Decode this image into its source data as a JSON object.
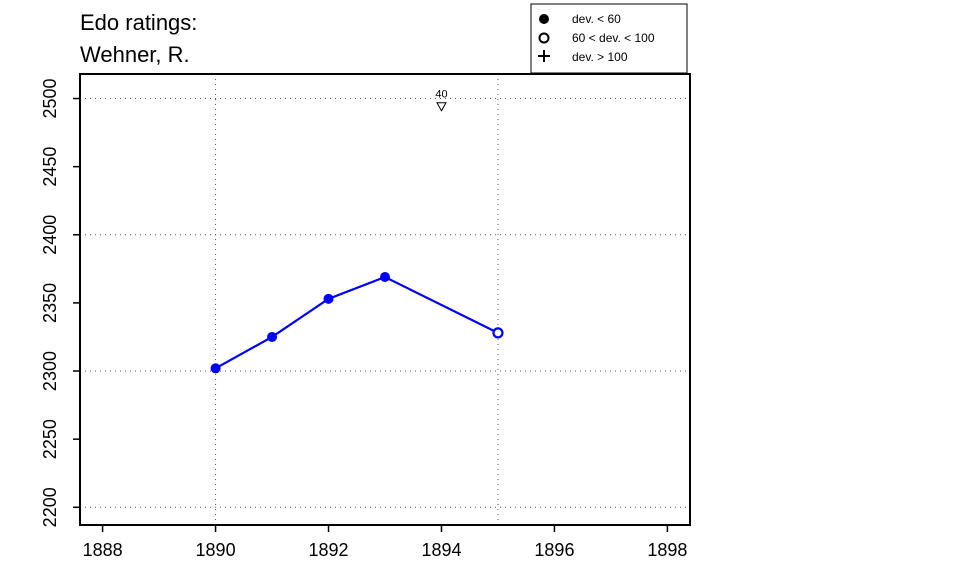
{
  "chart_data": {
    "type": "line",
    "title_line1": "Edo ratings:",
    "title_line2": "Wehner, R.",
    "xlabel": "",
    "ylabel": "",
    "xlim": [
      1887.6,
      1898.4
    ],
    "ylim": [
      2187,
      2518
    ],
    "x_ticks": [
      1888,
      1890,
      1892,
      1894,
      1896,
      1898
    ],
    "y_ticks": [
      2200,
      2250,
      2300,
      2350,
      2400,
      2450,
      2500
    ],
    "x_grid": [
      1890,
      1895
    ],
    "y_grid": [
      2200,
      2300,
      2400,
      2500
    ],
    "grid": true,
    "series": [
      {
        "color": "#0000ff",
        "points": [
          {
            "x": 1890,
            "y": 2302,
            "dev": "lt60"
          },
          {
            "x": 1891,
            "y": 2325,
            "dev": "lt60"
          },
          {
            "x": 1892,
            "y": 2353,
            "dev": "lt60"
          },
          {
            "x": 1893,
            "y": 2369,
            "dev": "lt60"
          },
          {
            "x": 1895,
            "y": 2328,
            "dev": "60to100"
          }
        ]
      }
    ],
    "annotations": [
      {
        "x": 1894,
        "y": 2494,
        "label": "40",
        "marker": "triangle-down"
      }
    ],
    "legend": {
      "position": "top-right",
      "entries": [
        {
          "symbol": "filled-circle",
          "label": "dev. < 60"
        },
        {
          "symbol": "open-circle",
          "label": "60 < dev. < 100"
        },
        {
          "symbol": "plus",
          "label": "dev. > 100"
        }
      ]
    }
  }
}
